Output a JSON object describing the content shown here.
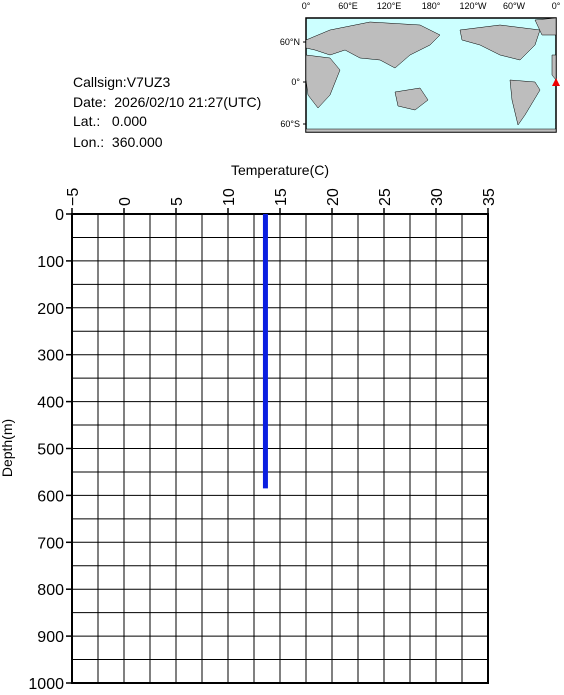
{
  "chart_data": {
    "type": "line",
    "x_label": "Temperature(C)",
    "y_label": "Depth(m)",
    "annotations": [
      "Callsign:V7UZ3",
      "Date:  2026/02/10 21:27(UTC)",
      "Lat.:   0.000",
      "Lon.:  360.000"
    ],
    "xlim": [
      -5,
      35
    ],
    "xticks": [
      {
        "value": -5,
        "label": "−5"
      },
      0,
      5,
      10,
      15,
      20,
      25,
      30,
      35
    ],
    "ylim": [
      0,
      1000
    ],
    "yticks": [
      0,
      100,
      200,
      300,
      400,
      500,
      600,
      700,
      800,
      900,
      1000
    ],
    "xgrid": [
      -5,
      -2.5,
      0,
      2.5,
      5,
      7.5,
      10,
      12.5,
      15,
      17.5,
      20,
      22.5,
      25,
      27.5,
      30,
      32.5,
      35
    ],
    "ygrid": [
      0,
      50,
      100,
      150,
      200,
      250,
      300,
      350,
      400,
      450,
      500,
      550,
      600,
      650,
      700,
      750,
      800,
      850,
      900,
      950,
      1000
    ],
    "grid": true,
    "y_inverted": true,
    "series": [
      {
        "color": "#0a1ee0",
        "x": [
          13.6,
          13.6,
          13.6,
          13.6,
          13.6,
          13.6,
          13.6
        ],
        "y": [
          0,
          100,
          200,
          300,
          400,
          500,
          585
        ]
      }
    ]
  },
  "map": {
    "lon_labels": [
      "0°",
      "60°E",
      "120°E",
      "180°",
      "120°W",
      "60°W",
      "0°"
    ],
    "lat_labels": [
      "60°N",
      "0°",
      "60°S"
    ]
  }
}
